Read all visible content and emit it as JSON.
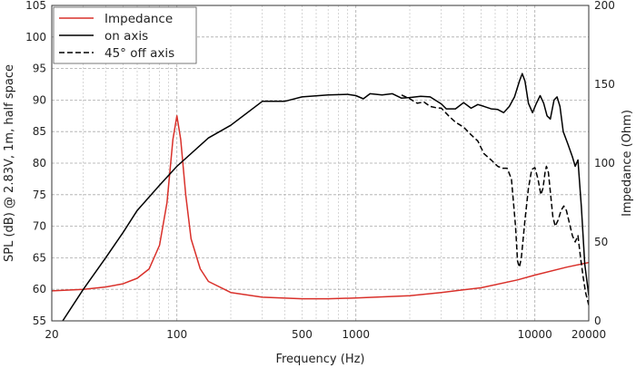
{
  "chart_data": {
    "type": "line",
    "xlabel": "Frequency (Hz)",
    "ylabel": "SPL (dB) @ 2.83V, 1m, half space",
    "y2label": "Impedance (Ohm)",
    "xscale": "log",
    "xlim": [
      20,
      20000
    ],
    "ylim": [
      55,
      105
    ],
    "y2lim": [
      0,
      200
    ],
    "grid": true,
    "legend_position": "top-left",
    "x_ticks": [
      {
        "value": 20,
        "label": "20"
      },
      {
        "value": 100,
        "label": "100"
      },
      {
        "value": 500,
        "label": "500"
      },
      {
        "value": 1000,
        "label": "1000"
      },
      {
        "value": 10000,
        "label": "10000"
      },
      {
        "value": 20000,
        "label": "20000"
      }
    ],
    "y_ticks": [
      {
        "value": 55,
        "label": "55"
      },
      {
        "value": 60,
        "label": "60"
      },
      {
        "value": 65,
        "label": "65"
      },
      {
        "value": 70,
        "label": "70"
      },
      {
        "value": 75,
        "label": "75"
      },
      {
        "value": 80,
        "label": "80"
      },
      {
        "value": 85,
        "label": "85"
      },
      {
        "value": 90,
        "label": "90"
      },
      {
        "value": 95,
        "label": "95"
      },
      {
        "value": 100,
        "label": "100"
      },
      {
        "value": 105,
        "label": "105"
      }
    ],
    "y2_ticks": [
      {
        "value": 0,
        "label": "0"
      },
      {
        "value": 50,
        "label": "50"
      },
      {
        "value": 100,
        "label": "100"
      },
      {
        "value": 150,
        "label": "150"
      },
      {
        "value": 200,
        "label": "200"
      }
    ],
    "series": [
      {
        "name": "Impedance",
        "axis": "right",
        "color": "#d9302a",
        "style": "solid",
        "points": [
          [
            20,
            19
          ],
          [
            30,
            20
          ],
          [
            40,
            21.5
          ],
          [
            50,
            23.5
          ],
          [
            60,
            27
          ],
          [
            70,
            33
          ],
          [
            80,
            48
          ],
          [
            88,
            75
          ],
          [
            95,
            115
          ],
          [
            100,
            130
          ],
          [
            105,
            115
          ],
          [
            112,
            80
          ],
          [
            120,
            52
          ],
          [
            135,
            33
          ],
          [
            150,
            25
          ],
          [
            200,
            18
          ],
          [
            300,
            15
          ],
          [
            500,
            14
          ],
          [
            700,
            14
          ],
          [
            1000,
            14.5
          ],
          [
            2000,
            16
          ],
          [
            3000,
            18
          ],
          [
            5000,
            21
          ],
          [
            8000,
            26
          ],
          [
            10000,
            29
          ],
          [
            15000,
            34
          ],
          [
            20000,
            37
          ]
        ]
      },
      {
        "name": "on axis",
        "axis": "left",
        "color": "#000000",
        "style": "solid",
        "points": [
          [
            23,
            55
          ],
          [
            30,
            60
          ],
          [
            40,
            65
          ],
          [
            50,
            69
          ],
          [
            60,
            72.5
          ],
          [
            80,
            76.5
          ],
          [
            100,
            79.5
          ],
          [
            150,
            84
          ],
          [
            200,
            86
          ],
          [
            300,
            89.8
          ],
          [
            400,
            89.8
          ],
          [
            500,
            90.5
          ],
          [
            700,
            90.8
          ],
          [
            900,
            90.9
          ],
          [
            1000,
            90.7
          ],
          [
            1100,
            90.2
          ],
          [
            1200,
            91
          ],
          [
            1400,
            90.8
          ],
          [
            1600,
            91
          ],
          [
            1800,
            90.3
          ],
          [
            2000,
            90.4
          ],
          [
            2300,
            90.6
          ],
          [
            2600,
            90.5
          ],
          [
            3000,
            89.4
          ],
          [
            3200,
            88.6
          ],
          [
            3600,
            88.6
          ],
          [
            4000,
            89.6
          ],
          [
            4400,
            88.7
          ],
          [
            4800,
            89.3
          ],
          [
            5200,
            89
          ],
          [
            5700,
            88.6
          ],
          [
            6200,
            88.5
          ],
          [
            6700,
            88
          ],
          [
            7200,
            89
          ],
          [
            7700,
            90.5
          ],
          [
            8200,
            93
          ],
          [
            8500,
            94.2
          ],
          [
            8800,
            93
          ],
          [
            9200,
            89.5
          ],
          [
            9700,
            88
          ],
          [
            10200,
            89.5
          ],
          [
            10700,
            90.7
          ],
          [
            11200,
            89.5
          ],
          [
            11700,
            87.5
          ],
          [
            12200,
            87
          ],
          [
            12800,
            90
          ],
          [
            13300,
            90.5
          ],
          [
            13800,
            89
          ],
          [
            14400,
            85
          ],
          [
            15300,
            83
          ],
          [
            16200,
            81
          ],
          [
            16800,
            79.5
          ],
          [
            17400,
            80.5
          ],
          [
            18200,
            73
          ],
          [
            19000,
            64
          ],
          [
            20000,
            59
          ]
        ]
      },
      {
        "name": "45° off axis",
        "axis": "left",
        "color": "#000000",
        "style": "dashed",
        "points": [
          [
            1800,
            90.8
          ],
          [
            2000,
            90.2
          ],
          [
            2200,
            89.5
          ],
          [
            2400,
            89.7
          ],
          [
            2600,
            89
          ],
          [
            2800,
            88.8
          ],
          [
            3000,
            88.7
          ],
          [
            3300,
            87.5
          ],
          [
            3600,
            86.5
          ],
          [
            4000,
            85.7
          ],
          [
            4400,
            84.5
          ],
          [
            4800,
            83.5
          ],
          [
            5200,
            81.5
          ],
          [
            5700,
            80.5
          ],
          [
            6200,
            79.5
          ],
          [
            6600,
            79.2
          ],
          [
            7000,
            79.2
          ],
          [
            7400,
            77.5
          ],
          [
            7800,
            70
          ],
          [
            8000,
            64.5
          ],
          [
            8200,
            63.5
          ],
          [
            8400,
            65
          ],
          [
            8800,
            71
          ],
          [
            9200,
            76
          ],
          [
            9600,
            79
          ],
          [
            10000,
            79.3
          ],
          [
            10400,
            77.5
          ],
          [
            10800,
            75
          ],
          [
            11100,
            76
          ],
          [
            11400,
            78.5
          ],
          [
            11600,
            79.5
          ],
          [
            11900,
            78.5
          ],
          [
            12200,
            75.5
          ],
          [
            12600,
            71.5
          ],
          [
            13000,
            70
          ],
          [
            13500,
            71
          ],
          [
            14000,
            72.5
          ],
          [
            14500,
            73.2
          ],
          [
            15000,
            72.5
          ],
          [
            15600,
            70.5
          ],
          [
            16200,
            68.5
          ],
          [
            16800,
            67.5
          ],
          [
            17400,
            68.5
          ],
          [
            18000,
            65
          ],
          [
            18600,
            62
          ],
          [
            19200,
            59.5
          ],
          [
            20000,
            57.5
          ]
        ]
      }
    ]
  }
}
